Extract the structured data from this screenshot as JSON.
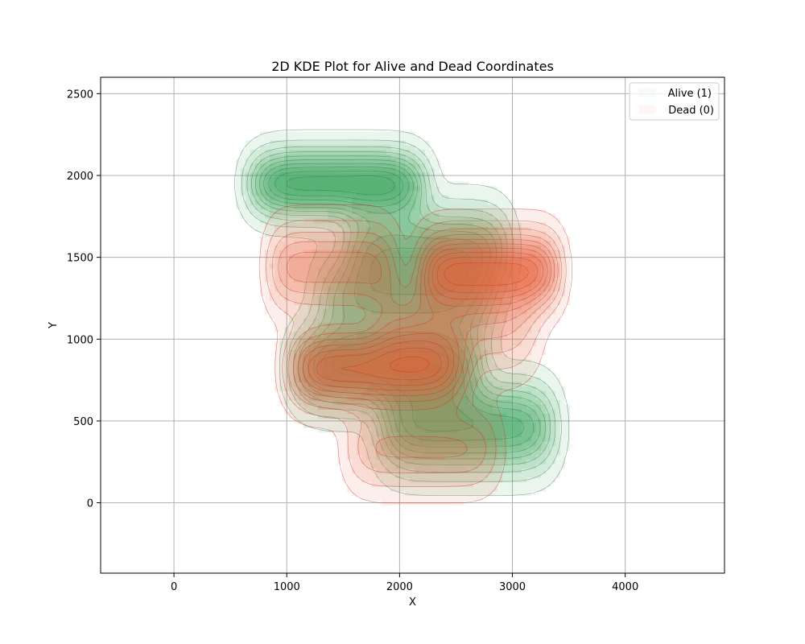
{
  "chart_data": {
    "type": "kde_contour",
    "title": "2D KDE Plot for Alive and Dead Coordinates",
    "xlabel": "X",
    "ylabel": "Y",
    "xlim": [
      -650,
      4880
    ],
    "ylim": [
      -430,
      2600
    ],
    "xticks": [
      0,
      1000,
      2000,
      3000,
      4000
    ],
    "yticks": [
      0,
      500,
      1000,
      1500,
      2000,
      2500
    ],
    "grid": true,
    "legend_position": "top-right",
    "series": [
      {
        "name": "Alive (1)",
        "color": "#3aa35c",
        "line_color": "#2e6b3a",
        "clusters": [
          {
            "cx": 1450,
            "cy": 1950,
            "sx": 1500,
            "sy": 130,
            "w": 1.6
          },
          {
            "cx": 2250,
            "cy": 1550,
            "sx": 1400,
            "sy": 170,
            "w": 1.0
          },
          {
            "cx": 2050,
            "cy": 1250,
            "sx": 1500,
            "sy": 170,
            "w": 0.9
          },
          {
            "cx": 1900,
            "cy": 830,
            "sx": 1600,
            "sy": 160,
            "w": 1.4
          },
          {
            "cx": 2600,
            "cy": 460,
            "sx": 1500,
            "sy": 170,
            "w": 1.3
          }
        ]
      },
      {
        "name": "Dead (0)",
        "color": "#e8623c",
        "line_color": "#c0282a",
        "clusters": [
          {
            "cx": 2800,
            "cy": 1420,
            "sx": 1200,
            "sy": 150,
            "w": 2.4
          },
          {
            "cx": 1400,
            "cy": 1440,
            "sx": 1100,
            "sy": 170,
            "w": 1.3
          },
          {
            "cx": 1800,
            "cy": 820,
            "sx": 1500,
            "sy": 150,
            "w": 2.2
          },
          {
            "cx": 2500,
            "cy": 1100,
            "sx": 1400,
            "sy": 200,
            "w": 0.9
          },
          {
            "cx": 2200,
            "cy": 330,
            "sx": 1300,
            "sy": 160,
            "w": 0.9
          }
        ]
      }
    ]
  }
}
